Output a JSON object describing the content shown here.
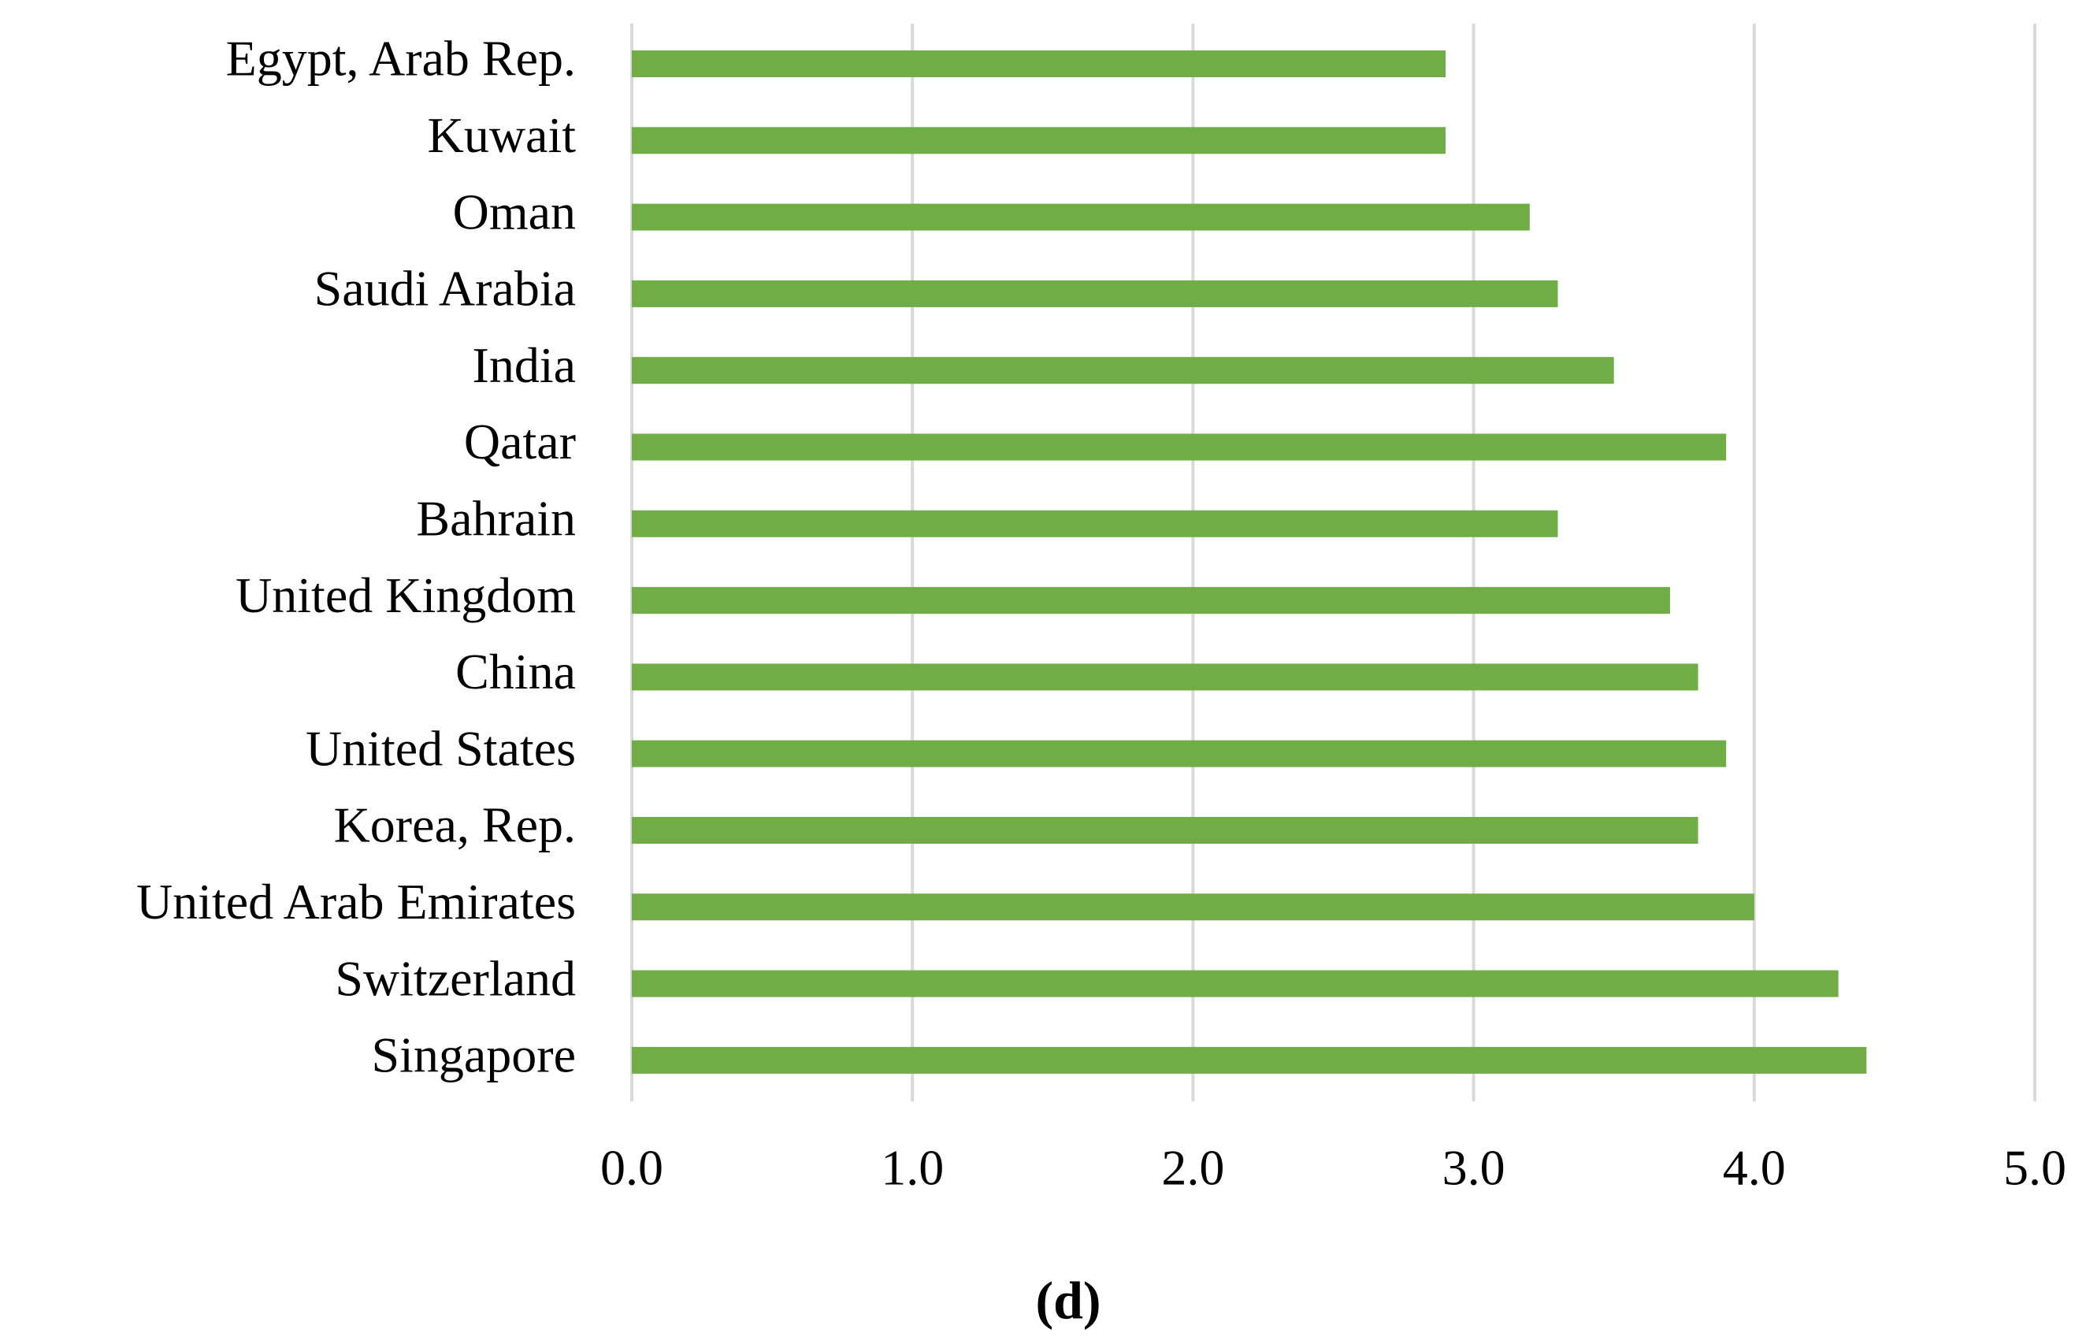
{
  "chart_data": {
    "type": "bar",
    "orientation": "horizontal",
    "caption": "(d)",
    "categories": [
      "Egypt, Arab Rep.",
      "Kuwait",
      "Oman",
      "Saudi Arabia",
      "India",
      "Qatar",
      "Bahrain",
      "United Kingdom",
      "China",
      "United States",
      "Korea, Rep.",
      "United Arab Emirates",
      "Switzerland",
      "Singapore"
    ],
    "values": [
      2.9,
      2.9,
      3.2,
      3.3,
      3.5,
      3.9,
      3.3,
      3.7,
      3.8,
      3.9,
      3.8,
      4.0,
      4.3,
      4.4
    ],
    "color": "#70ad47",
    "xlim": [
      0,
      5
    ],
    "xticks": [
      {
        "value": 0,
        "label": "0.0"
      },
      {
        "value": 1,
        "label": "1.0"
      },
      {
        "value": 2,
        "label": "2.0"
      },
      {
        "value": 3,
        "label": "3.0"
      },
      {
        "value": 4,
        "label": "4.0"
      },
      {
        "value": 5,
        "label": "5.0"
      }
    ],
    "grid": true
  }
}
